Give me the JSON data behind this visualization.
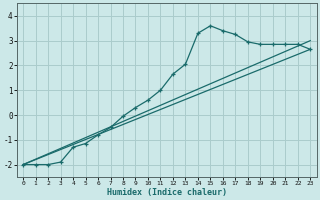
{
  "xlabel": "Humidex (Indice chaleur)",
  "bg_color": "#cce8e8",
  "grid_color": "#aacccc",
  "line_color": "#1a6b6b",
  "xlim": [
    -0.5,
    23.5
  ],
  "ylim": [
    -2.5,
    4.5
  ],
  "xticks": [
    0,
    1,
    2,
    3,
    4,
    5,
    6,
    7,
    8,
    9,
    10,
    11,
    12,
    13,
    14,
    15,
    16,
    17,
    18,
    19,
    20,
    21,
    22,
    23
  ],
  "yticks": [
    -2,
    -1,
    0,
    1,
    2,
    3,
    4
  ],
  "line1_x": [
    0,
    1,
    2,
    3,
    4,
    5,
    6,
    7,
    8,
    9,
    10,
    11,
    12,
    13,
    14,
    15,
    16,
    17,
    18,
    19,
    20,
    21,
    22,
    23
  ],
  "line1_y": [
    -2.0,
    -2.0,
    -2.0,
    -1.9,
    -1.3,
    -1.15,
    -0.8,
    -0.5,
    -0.05,
    0.3,
    0.6,
    1.0,
    1.65,
    2.05,
    3.3,
    3.6,
    3.4,
    3.25,
    2.95,
    2.85,
    2.85,
    2.85,
    2.85,
    2.65
  ],
  "line2_x": [
    0,
    23
  ],
  "line2_y": [
    -2.0,
    2.65
  ],
  "line3_x": [
    0,
    23
  ],
  "line3_y": [
    -2.0,
    3.0
  ]
}
